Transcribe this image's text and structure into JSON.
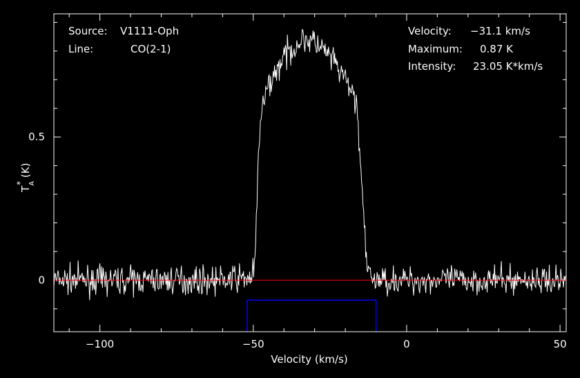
{
  "chart_data": {
    "type": "line",
    "title": "",
    "xlabel": "Velocity (km/s)",
    "ylabel_main": "T",
    "ylabel_sup": "*",
    "ylabel_sub": "A",
    "ylabel_unit": " (K)",
    "xlim": [
      -115,
      52
    ],
    "ylim": [
      -0.18,
      0.93
    ],
    "x_major_ticks": [
      -100,
      -50,
      0,
      50
    ],
    "x_tick_labels": [
      "−100",
      "−50",
      "0",
      "50"
    ],
    "y_major_ticks": [
      0,
      0.5
    ],
    "y_tick_labels": [
      "0",
      "0.5"
    ],
    "baseline_y": 0,
    "window": {
      "x_start": -52,
      "x_end": -10,
      "y_top": -0.07
    },
    "series": [
      {
        "profile": "flat-topped line, rising at about -48.5 km/s and falling at about -15.5 km/s, peak about 0.87 K near -33 km/s, with ~0.04 K rms noise across the full velocity range",
        "x": [
          -115,
          -60,
          -50.5,
          -49.5,
          -48.8,
          -48.3,
          -47.5,
          -45,
          -40,
          -35,
          -33,
          -30,
          -25,
          -20,
          -17,
          -16,
          -15.5,
          -15,
          -14,
          -13.3,
          -12.5,
          -10,
          0,
          52
        ],
        "y": [
          0,
          0,
          0.01,
          0.05,
          0.25,
          0.45,
          0.58,
          0.68,
          0.78,
          0.83,
          0.845,
          0.83,
          0.78,
          0.7,
          0.64,
          0.58,
          0.5,
          0.4,
          0.22,
          0.08,
          0.02,
          0,
          0,
          0
        ]
      }
    ],
    "info": {
      "source_label": "Source:",
      "source_value": "V1111-Oph",
      "line_label": "Line:",
      "line_value": "CO(2-1)",
      "velocity_label": "Velocity:",
      "velocity_value": "−31.1 km/s",
      "maximum_label": "Maximum:",
      "maximum_value": "0.87 K",
      "intensity_label": "Intensity:",
      "intensity_value": "23.05 K*km/s"
    },
    "colors": {
      "background": "#000000",
      "spectrum": "#ffffff",
      "baseline": "#ff0000",
      "window": "#0000ff",
      "axes": "#ffffff"
    }
  }
}
